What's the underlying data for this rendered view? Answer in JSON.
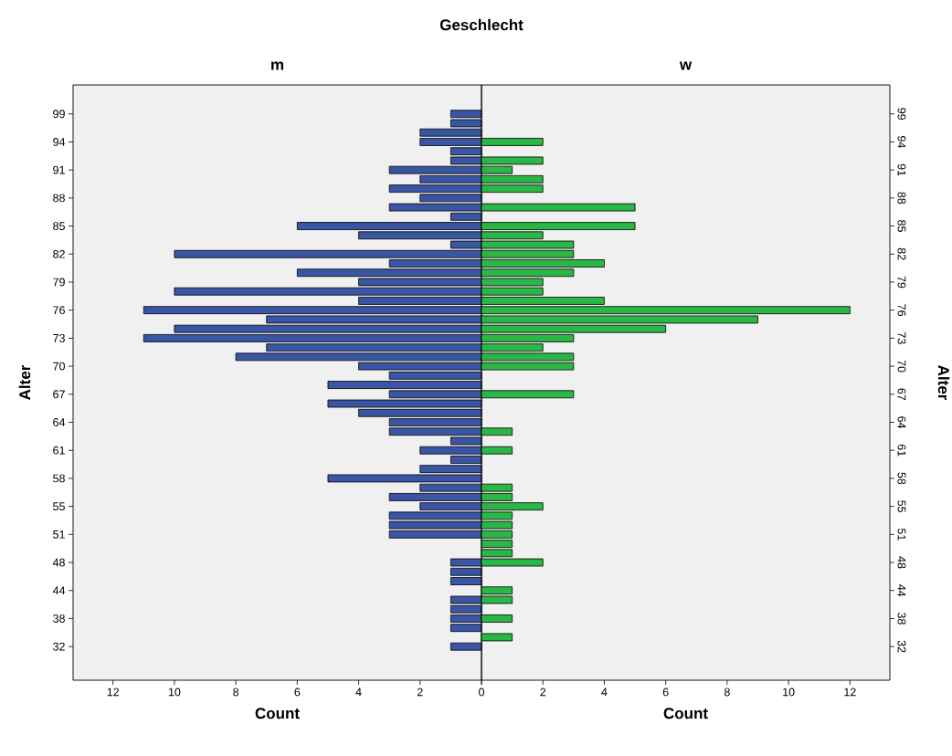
{
  "chart_data": [
    {
      "type": "bar",
      "orientation": "horizontal",
      "title": "Geschlecht",
      "subtitle": "m",
      "xlabel": "Count",
      "ylabel": "Alter",
      "categories": [
        "99",
        null,
        null,
        "94",
        null,
        null,
        "91",
        null,
        null,
        "88",
        null,
        null,
        "85",
        null,
        null,
        "82",
        null,
        null,
        "79",
        null,
        null,
        "76",
        null,
        null,
        "73",
        null,
        null,
        "70",
        null,
        null,
        "67",
        null,
        null,
        "64",
        null,
        null,
        "61",
        null,
        null,
        "58",
        null,
        null,
        "55",
        null,
        null,
        "51",
        null,
        null,
        "48",
        null,
        null,
        "44",
        null,
        null,
        "38",
        null,
        null,
        "32"
      ],
      "values": [
        1,
        1,
        2,
        2,
        1,
        1,
        3,
        2,
        3,
        2,
        3,
        1,
        6,
        4,
        1,
        10,
        3,
        6,
        4,
        10,
        4,
        11,
        7,
        10,
        11,
        7,
        8,
        4,
        3,
        5,
        3,
        5,
        4,
        3,
        3,
        1,
        2,
        1,
        2,
        5,
        2,
        3,
        2,
        3,
        3,
        3,
        0,
        0,
        1,
        1,
        1,
        0,
        1,
        1,
        1,
        1,
        0,
        1
      ],
      "color": "#3a55a4",
      "xlim": [
        13.3,
        0
      ],
      "xticks": [
        12,
        10,
        8,
        6,
        4,
        2,
        {
          "value": 0,
          "label": null
        }
      ]
    },
    {
      "type": "bar",
      "orientation": "horizontal",
      "subtitle": "w",
      "xlabel": "Count",
      "ylabel": "Alter",
      "categories": [
        "99",
        null,
        null,
        "94",
        null,
        null,
        "91",
        null,
        null,
        "88",
        null,
        null,
        "85",
        null,
        null,
        "82",
        null,
        null,
        "79",
        null,
        null,
        "76",
        null,
        null,
        "73",
        null,
        null,
        "70",
        null,
        null,
        "67",
        null,
        null,
        "64",
        null,
        null,
        "61",
        null,
        null,
        "58",
        null,
        null,
        "55",
        null,
        null,
        "51",
        null,
        null,
        "48",
        null,
        null,
        "44",
        null,
        null,
        "38",
        null,
        null,
        "32"
      ],
      "values": [
        0,
        0,
        0,
        2,
        0,
        2,
        1,
        2,
        2,
        0,
        5,
        0,
        5,
        2,
        3,
        3,
        4,
        3,
        2,
        2,
        4,
        12,
        9,
        6,
        3,
        2,
        3,
        3,
        0,
        0,
        3,
        0,
        0,
        0,
        1,
        0,
        1,
        0,
        0,
        0,
        1,
        1,
        2,
        1,
        1,
        1,
        1,
        1,
        2,
        0,
        0,
        1,
        1,
        0,
        1,
        0,
        1,
        0
      ],
      "color": "#2bb745",
      "xlim": [
        0,
        13.3
      ],
      "xticks": [
        0,
        2,
        4,
        6,
        8,
        10,
        12
      ]
    }
  ]
}
